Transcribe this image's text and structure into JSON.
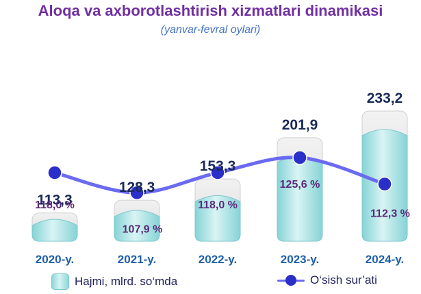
{
  "title": "Aloqa va axborotlashtirish xizmatlari dinamikasi",
  "subtitle": "(yanvar-fevral oylari)",
  "chart_data": {
    "type": "bar",
    "categories": [
      "2020-y.",
      "2021-y.",
      "2022-y.",
      "2023-y.",
      "2024-y."
    ],
    "series": [
      {
        "name": "Hajmi, mlrd. so‘mda",
        "type": "bar",
        "values": [
          113.3,
          128.3,
          153.3,
          201.9,
          233.2
        ],
        "labels": [
          "113,3",
          "128,3",
          "153,3",
          "201,9",
          "233,2"
        ],
        "color": "#8fd8da"
      },
      {
        "name": "O‘sish sur’ati",
        "type": "line",
        "values": [
          118.0,
          107.9,
          118.0,
          125.6,
          112.3
        ],
        "labels": [
          "118,0 %",
          "107,9 %",
          "118,0 %",
          "125,6 %",
          "112,3 %"
        ],
        "color": "#2b2fc9"
      }
    ],
    "legend": "bottom",
    "grid": false
  },
  "colors": {
    "title": "#7030a0",
    "subtitle": "#4472c4",
    "category_labels": "#1f5fa8",
    "bar_labels": "#1a2a5a",
    "percent_labels": "#5a2a7a",
    "line": "#6a6af0",
    "marker": "#2b2fc9"
  }
}
